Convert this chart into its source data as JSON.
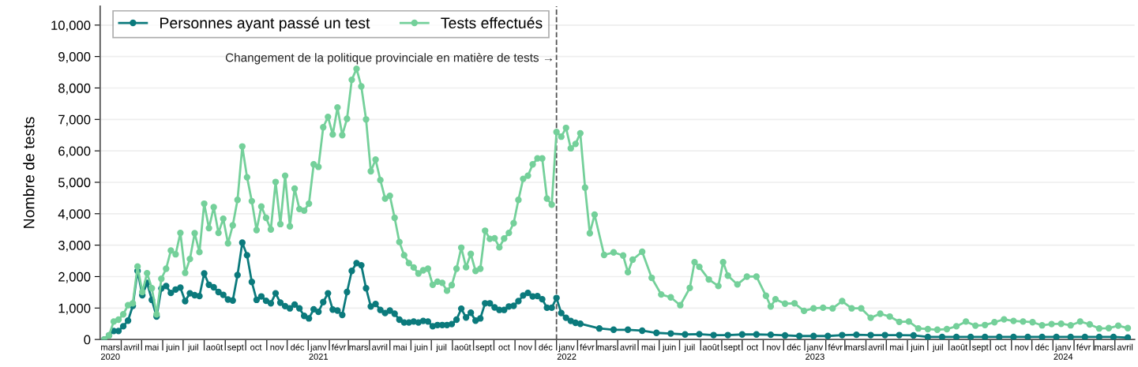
{
  "chart_data": {
    "type": "line",
    "ylabel": "Nombre de tests",
    "series": [
      {
        "name": "Personnes ayant passé un test",
        "color": "#0b7a7c",
        "x": [
          "2020-03-07",
          "2020-03-14",
          "2020-03-21",
          "2020-03-28",
          "2020-04-04",
          "2020-04-11",
          "2020-04-18",
          "2020-04-25",
          "2020-05-02",
          "2020-05-09",
          "2020-05-16",
          "2020-05-23",
          "2020-05-30",
          "2020-06-06",
          "2020-06-13",
          "2020-06-20",
          "2020-06-27",
          "2020-07-04",
          "2020-07-11",
          "2020-07-18",
          "2020-07-25",
          "2020-08-01",
          "2020-08-08",
          "2020-08-15",
          "2020-08-22",
          "2020-08-29",
          "2020-09-05",
          "2020-09-12",
          "2020-09-19",
          "2020-09-26",
          "2020-10-03",
          "2020-10-10",
          "2020-10-17",
          "2020-10-24",
          "2020-10-31",
          "2020-11-07",
          "2020-11-14",
          "2020-11-21",
          "2020-11-28",
          "2020-12-05",
          "2020-12-12",
          "2020-12-19",
          "2020-12-26",
          "2021-01-02",
          "2021-01-09",
          "2021-01-16",
          "2021-01-23",
          "2021-01-30",
          "2021-02-06",
          "2021-02-13",
          "2021-02-20",
          "2021-02-27",
          "2021-03-06",
          "2021-03-13",
          "2021-03-20",
          "2021-03-27",
          "2021-04-03",
          "2021-04-10",
          "2021-04-17",
          "2021-04-24",
          "2021-05-01",
          "2021-05-08",
          "2021-05-15",
          "2021-05-22",
          "2021-05-29",
          "2021-06-05",
          "2021-06-12",
          "2021-06-19",
          "2021-06-26",
          "2021-07-03",
          "2021-07-10",
          "2021-07-17",
          "2021-07-24",
          "2021-07-31",
          "2021-08-07",
          "2021-08-14",
          "2021-08-21",
          "2021-08-28",
          "2021-09-04",
          "2021-09-11",
          "2021-09-18",
          "2021-09-25",
          "2021-10-02",
          "2021-10-09",
          "2021-10-16",
          "2021-10-23",
          "2021-10-30",
          "2021-11-06",
          "2021-11-13",
          "2021-11-20",
          "2021-11-27",
          "2021-12-04",
          "2021-12-11",
          "2021-12-18",
          "2021-12-25",
          "2022-01-01",
          "2022-01-08",
          "2022-01-15",
          "2022-01-22",
          "2022-01-29",
          "2022-02-05",
          "2022-03-05",
          "2022-03-26",
          "2022-04-16",
          "2022-05-07",
          "2022-05-28",
          "2022-06-18",
          "2022-07-09",
          "2022-07-30",
          "2022-08-20",
          "2022-09-10",
          "2022-10-01",
          "2022-10-22",
          "2022-11-12",
          "2022-12-03",
          "2022-12-24",
          "2023-01-14",
          "2023-02-04",
          "2023-02-25",
          "2023-03-18",
          "2023-04-08",
          "2023-04-29",
          "2023-05-20",
          "2023-06-10",
          "2023-07-01",
          "2023-07-22",
          "2023-08-12",
          "2023-09-02",
          "2023-09-23",
          "2023-10-14",
          "2023-11-04",
          "2023-11-25",
          "2023-12-16",
          "2024-01-06",
          "2024-01-27",
          "2024-02-17",
          "2024-03-09",
          "2024-03-30",
          "2024-04-20"
        ],
        "values": [
          0,
          130,
          270,
          270,
          420,
          600,
          1070,
          2180,
          1410,
          1800,
          1260,
          730,
          1620,
          1700,
          1480,
          1590,
          1650,
          1220,
          1470,
          1410,
          1380,
          2100,
          1740,
          1660,
          1510,
          1420,
          1270,
          1240,
          2050,
          3080,
          2680,
          1830,
          1260,
          1370,
          1230,
          1150,
          1470,
          1170,
          1060,
          990,
          1110,
          990,
          750,
          670,
          960,
          880,
          1190,
          1470,
          950,
          920,
          780,
          1510,
          2180,
          2430,
          2360,
          1630,
          1050,
          1130,
          940,
          840,
          920,
          820,
          630,
          540,
          540,
          570,
          540,
          590,
          570,
          420,
          460,
          460,
          460,
          490,
          630,
          980,
          700,
          850,
          600,
          670,
          1150,
          1150,
          1020,
          940,
          940,
          1050,
          1070,
          1220,
          1400,
          1480,
          1370,
          1380,
          1280,
          1010,
          1010,
          1320,
          840,
          690,
          590,
          530,
          500,
          350,
          310,
          310,
          280,
          210,
          190,
          160,
          170,
          140,
          140,
          160,
          160,
          150,
          130,
          110,
          110,
          110,
          140,
          150,
          140,
          140,
          140,
          130,
          80,
          80,
          80,
          80,
          80,
          80,
          80,
          80,
          80,
          80,
          80,
          80,
          80,
          80,
          60
        ]
      },
      {
        "name": "Tests effectués",
        "color": "#74d09a",
        "x": [
          "2020-03-07",
          "2020-03-14",
          "2020-03-21",
          "2020-03-28",
          "2020-04-04",
          "2020-04-11",
          "2020-04-18",
          "2020-04-25",
          "2020-05-02",
          "2020-05-09",
          "2020-05-16",
          "2020-05-23",
          "2020-05-30",
          "2020-06-06",
          "2020-06-13",
          "2020-06-20",
          "2020-06-27",
          "2020-07-04",
          "2020-07-11",
          "2020-07-18",
          "2020-07-25",
          "2020-08-01",
          "2020-08-08",
          "2020-08-15",
          "2020-08-22",
          "2020-08-29",
          "2020-09-05",
          "2020-09-12",
          "2020-09-19",
          "2020-09-26",
          "2020-10-03",
          "2020-10-10",
          "2020-10-17",
          "2020-10-24",
          "2020-10-31",
          "2020-11-07",
          "2020-11-14",
          "2020-11-21",
          "2020-11-28",
          "2020-12-05",
          "2020-12-12",
          "2020-12-19",
          "2020-12-26",
          "2021-01-02",
          "2021-01-09",
          "2021-01-16",
          "2021-01-23",
          "2021-01-30",
          "2021-02-06",
          "2021-02-13",
          "2021-02-20",
          "2021-02-27",
          "2021-03-06",
          "2021-03-13",
          "2021-03-20",
          "2021-03-27",
          "2021-04-03",
          "2021-04-10",
          "2021-04-17",
          "2021-04-24",
          "2021-05-01",
          "2021-05-08",
          "2021-05-15",
          "2021-05-22",
          "2021-05-29",
          "2021-06-05",
          "2021-06-12",
          "2021-06-19",
          "2021-06-26",
          "2021-07-03",
          "2021-07-10",
          "2021-07-17",
          "2021-07-24",
          "2021-07-31",
          "2021-08-07",
          "2021-08-14",
          "2021-08-21",
          "2021-08-28",
          "2021-09-04",
          "2021-09-11",
          "2021-09-18",
          "2021-09-25",
          "2021-10-02",
          "2021-10-09",
          "2021-10-16",
          "2021-10-23",
          "2021-10-30",
          "2021-11-06",
          "2021-11-13",
          "2021-11-20",
          "2021-11-27",
          "2021-12-04",
          "2021-12-11",
          "2021-12-18",
          "2021-12-25",
          "2022-01-01",
          "2022-01-08",
          "2022-01-15",
          "2022-01-22",
          "2022-01-29",
          "2022-02-05",
          "2022-02-12",
          "2022-02-19",
          "2022-02-26",
          "2022-03-12",
          "2022-03-26",
          "2022-04-09",
          "2022-04-16",
          "2022-04-23",
          "2022-05-07",
          "2022-05-21",
          "2022-06-04",
          "2022-06-18",
          "2022-07-02",
          "2022-07-16",
          "2022-07-23",
          "2022-07-30",
          "2022-08-13",
          "2022-08-27",
          "2022-09-03",
          "2022-09-10",
          "2022-09-24",
          "2022-10-08",
          "2022-10-22",
          "2022-11-05",
          "2022-11-12",
          "2022-11-19",
          "2022-12-03",
          "2022-12-17",
          "2022-12-31",
          "2023-01-14",
          "2023-01-28",
          "2023-02-11",
          "2023-02-25",
          "2023-03-11",
          "2023-03-25",
          "2023-04-08",
          "2023-04-22",
          "2023-05-06",
          "2023-05-20",
          "2023-06-03",
          "2023-06-17",
          "2023-07-01",
          "2023-07-15",
          "2023-07-29",
          "2023-08-12",
          "2023-08-26",
          "2023-09-09",
          "2023-09-23",
          "2023-10-07",
          "2023-10-21",
          "2023-11-04",
          "2023-11-18",
          "2023-12-02",
          "2023-12-16",
          "2023-12-30",
          "2024-01-13",
          "2024-01-27",
          "2024-02-10",
          "2024-02-24",
          "2024-03-09",
          "2024-03-23",
          "2024-04-06",
          "2024-04-20"
        ],
        "values": [
          0,
          130,
          570,
          630,
          800,
          1090,
          1150,
          2320,
          1510,
          2110,
          1630,
          800,
          1930,
          2250,
          2830,
          2710,
          3390,
          2120,
          2560,
          3380,
          2780,
          4320,
          3540,
          4210,
          3390,
          3840,
          3060,
          3630,
          4440,
          6140,
          5160,
          4400,
          3480,
          4230,
          3870,
          3500,
          5010,
          3670,
          5210,
          3600,
          4800,
          4150,
          4100,
          4320,
          5570,
          5490,
          6750,
          7080,
          6520,
          7380,
          6500,
          7020,
          8260,
          8610,
          8050,
          7000,
          5350,
          5720,
          5070,
          4480,
          4570,
          3870,
          3100,
          2680,
          2430,
          2290,
          2100,
          2200,
          2250,
          1740,
          1840,
          1800,
          1550,
          1730,
          2250,
          2920,
          2300,
          2720,
          2180,
          2250,
          3460,
          3200,
          3220,
          2930,
          3210,
          3390,
          3700,
          4440,
          5110,
          5210,
          5570,
          5760,
          5760,
          4480,
          4290,
          6600,
          6450,
          6730,
          6080,
          6220,
          6560,
          4830,
          3380,
          3970,
          2690,
          2770,
          2670,
          2140,
          2540,
          2790,
          1960,
          1430,
          1340,
          1090,
          1640,
          2460,
          2310,
          1910,
          1700,
          2460,
          2030,
          1750,
          2000,
          2000,
          1390,
          1050,
          1280,
          1140,
          1150,
          910,
          990,
          1010,
          990,
          1220,
          990,
          990,
          690,
          820,
          730,
          560,
          570,
          350,
          330,
          310,
          330,
          420,
          570,
          440,
          460,
          550,
          640,
          590,
          570,
          550,
          450,
          490,
          500,
          450,
          570,
          480,
          350,
          360,
          440,
          360
        ]
      }
    ],
    "xlim": [
      "2020-03-01",
      "2024-04-30"
    ],
    "xticks": [
      {
        "value": "2020-03-16",
        "label": "mars\n2020"
      },
      {
        "value": "2020-04-01",
        "label": null
      },
      {
        "value": "2020-04-16",
        "label": "avril"
      },
      {
        "value": "2020-05-01",
        "label": null
      },
      {
        "value": "2020-05-16",
        "label": "mai"
      },
      {
        "value": "2020-06-01",
        "label": null
      },
      {
        "value": "2020-06-16",
        "label": "juin"
      },
      {
        "value": "2020-07-01",
        "label": null
      },
      {
        "value": "2020-07-16",
        "label": "juil"
      },
      {
        "value": "2020-08-01",
        "label": null
      },
      {
        "value": "2020-08-16",
        "label": "août"
      },
      {
        "value": "2020-09-01",
        "label": null
      },
      {
        "value": "2020-09-16",
        "label": "sept"
      },
      {
        "value": "2020-10-01",
        "label": null
      },
      {
        "value": "2020-10-16",
        "label": "oct"
      },
      {
        "value": "2020-11-01",
        "label": null
      },
      {
        "value": "2020-11-16",
        "label": "nov"
      },
      {
        "value": "2020-12-01",
        "label": null
      },
      {
        "value": "2020-12-16",
        "label": "déc"
      },
      {
        "value": "2021-01-01",
        "label": null
      },
      {
        "value": "2021-01-16",
        "label": "janv\n2021"
      },
      {
        "value": "2021-02-01",
        "label": null
      },
      {
        "value": "2021-02-15",
        "label": "févr"
      },
      {
        "value": "2021-03-01",
        "label": null
      },
      {
        "value": "2021-03-16",
        "label": "mars"
      },
      {
        "value": "2021-04-01",
        "label": null
      },
      {
        "value": "2021-04-16",
        "label": "avril"
      },
      {
        "value": "2021-05-01",
        "label": null
      },
      {
        "value": "2021-05-16",
        "label": "mai"
      },
      {
        "value": "2021-06-01",
        "label": null
      },
      {
        "value": "2021-06-16",
        "label": "juin"
      },
      {
        "value": "2021-07-01",
        "label": null
      },
      {
        "value": "2021-07-16",
        "label": "juil"
      },
      {
        "value": "2021-08-01",
        "label": null
      },
      {
        "value": "2021-08-16",
        "label": "août"
      },
      {
        "value": "2021-09-01",
        "label": null
      },
      {
        "value": "2021-09-16",
        "label": "sept"
      },
      {
        "value": "2021-10-01",
        "label": null
      },
      {
        "value": "2021-10-16",
        "label": "oct"
      },
      {
        "value": "2021-11-01",
        "label": null
      },
      {
        "value": "2021-11-16",
        "label": "nov"
      },
      {
        "value": "2021-12-01",
        "label": null
      },
      {
        "value": "2021-12-16",
        "label": "déc"
      },
      {
        "value": "2022-01-01",
        "label": null
      },
      {
        "value": "2022-01-16",
        "label": "janv\n2022"
      },
      {
        "value": "2022-02-01",
        "label": null
      },
      {
        "value": "2022-02-15",
        "label": "févr"
      },
      {
        "value": "2022-03-01",
        "label": null
      },
      {
        "value": "2022-03-16",
        "label": "mars"
      },
      {
        "value": "2022-04-01",
        "label": null
      },
      {
        "value": "2022-04-16",
        "label": "avril"
      },
      {
        "value": "2022-05-01",
        "label": null
      },
      {
        "value": "2022-05-16",
        "label": "mai"
      },
      {
        "value": "2022-06-01",
        "label": null
      },
      {
        "value": "2022-06-16",
        "label": "juin"
      },
      {
        "value": "2022-07-01",
        "label": null
      },
      {
        "value": "2022-07-16",
        "label": "juil"
      },
      {
        "value": "2022-08-01",
        "label": null
      },
      {
        "value": "2022-08-16",
        "label": "août"
      },
      {
        "value": "2022-09-01",
        "label": null
      },
      {
        "value": "2022-09-16",
        "label": "sept"
      },
      {
        "value": "2022-10-01",
        "label": null
      },
      {
        "value": "2022-10-16",
        "label": "oct"
      },
      {
        "value": "2022-11-01",
        "label": null
      },
      {
        "value": "2022-11-16",
        "label": "nov"
      },
      {
        "value": "2022-12-01",
        "label": null
      },
      {
        "value": "2022-12-16",
        "label": "déc"
      },
      {
        "value": "2023-01-01",
        "label": null
      },
      {
        "value": "2023-01-16",
        "label": "janv\n2023"
      },
      {
        "value": "2023-02-01",
        "label": null
      },
      {
        "value": "2023-02-15",
        "label": "févr"
      },
      {
        "value": "2023-03-01",
        "label": null
      },
      {
        "value": "2023-03-16",
        "label": "mars"
      },
      {
        "value": "2023-04-01",
        "label": null
      },
      {
        "value": "2023-04-16",
        "label": "avril"
      },
      {
        "value": "2023-05-01",
        "label": null
      },
      {
        "value": "2023-05-16",
        "label": "mai"
      },
      {
        "value": "2023-06-01",
        "label": null
      },
      {
        "value": "2023-06-16",
        "label": "juin"
      },
      {
        "value": "2023-07-01",
        "label": null
      },
      {
        "value": "2023-07-16",
        "label": "juil"
      },
      {
        "value": "2023-08-01",
        "label": null
      },
      {
        "value": "2023-08-16",
        "label": "août"
      },
      {
        "value": "2023-09-01",
        "label": null
      },
      {
        "value": "2023-09-16",
        "label": "sept"
      },
      {
        "value": "2023-10-01",
        "label": null
      },
      {
        "value": "2023-10-16",
        "label": "oct"
      },
      {
        "value": "2023-11-01",
        "label": null
      },
      {
        "value": "2023-11-16",
        "label": "nov"
      },
      {
        "value": "2023-12-01",
        "label": null
      },
      {
        "value": "2023-12-16",
        "label": "déc"
      },
      {
        "value": "2024-01-01",
        "label": null
      },
      {
        "value": "2024-01-16",
        "label": "janv\n2024"
      },
      {
        "value": "2024-02-01",
        "label": null
      },
      {
        "value": "2024-02-15",
        "label": "févr"
      },
      {
        "value": "2024-03-01",
        "label": null
      },
      {
        "value": "2024-03-16",
        "label": "mars"
      },
      {
        "value": "2024-04-01",
        "label": null
      },
      {
        "value": "2024-04-16",
        "label": "avril"
      }
    ],
    "ylim": [
      0,
      10600
    ],
    "yticks": [
      0,
      {
        "value": 1000,
        "label": "1,000"
      },
      {
        "value": 2000,
        "label": "2,000"
      },
      {
        "value": 3000,
        "label": "3,000"
      },
      {
        "value": 4000,
        "label": "4,000"
      },
      {
        "value": 5000,
        "label": "5,000"
      },
      {
        "value": 6000,
        "label": "6,000"
      },
      {
        "value": 7000,
        "label": "7,000"
      },
      {
        "value": 8000,
        "label": "8,000"
      },
      {
        "value": 9000,
        "label": "9,000"
      },
      {
        "value": 10000,
        "label": "10,000"
      }
    ],
    "ref_lines": [
      {
        "axis": "x",
        "value": "2022-01-01",
        "label": "Changement de la politique provinciale en matière de tests →",
        "color": "#555555",
        "line_style": "dashed"
      }
    ],
    "grid": "y",
    "legend": "top left",
    "marker": "circle",
    "line_style": "solid"
  }
}
